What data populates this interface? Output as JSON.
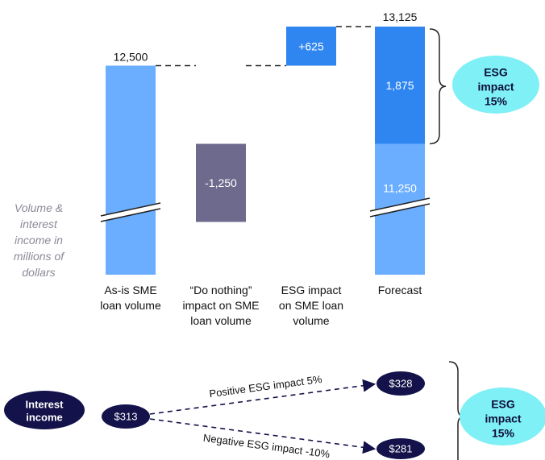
{
  "chart_data": {
    "type": "bar",
    "subtype": "waterfall",
    "categories": [
      [
        "As-is SME",
        "loan volume"
      ],
      [
        "“Do nothing”",
        "impact on SME",
        "loan volume"
      ],
      [
        "ESG impact",
        "on SME loan",
        "volume"
      ],
      [
        "Forecast"
      ]
    ],
    "axis_note": [
      "Volume &",
      "interest",
      "income in",
      "millions of",
      "dollars"
    ],
    "bars": [
      {
        "id": "as-is",
        "base": 0,
        "value": 12500,
        "label": "12,500",
        "label_position": "above",
        "color": "#6baeff"
      },
      {
        "id": "do-nothing",
        "base": 11250,
        "value": -1250,
        "label": "-1,250",
        "label_position": "inside",
        "color": "#6e6a8e"
      },
      {
        "id": "esg-impact",
        "base": 12500,
        "value": 625,
        "label": "+625",
        "label_position": "inside",
        "color": "#2f86f0"
      },
      {
        "id": "forecast-base",
        "base": 0,
        "value": 11250,
        "label": "11,250",
        "label_position": "inside",
        "color": "#6baeff"
      },
      {
        "id": "forecast-esg",
        "base": 11250,
        "value": 1875,
        "label": "1,875",
        "label_position": "inside",
        "color": "#2f86f0"
      }
    ],
    "forecast_total": {
      "value": 13125,
      "label": "13,125"
    },
    "axis_break": true,
    "volume_bubble": {
      "lines": [
        "ESG",
        "impact",
        "15%"
      ],
      "color": "#7ff0f5"
    },
    "interest": {
      "start_label": [
        "Interest",
        "income"
      ],
      "start_value": "$313",
      "up": {
        "label": "Positive ESG impact 5%",
        "value": "$328"
      },
      "down": {
        "label": "Negative ESG impact -10%",
        "value": "$281"
      },
      "bubble": {
        "lines": [
          "ESG",
          "impact",
          "15%"
        ],
        "color": "#7ff0f5"
      },
      "node_color": "#13124a"
    }
  }
}
